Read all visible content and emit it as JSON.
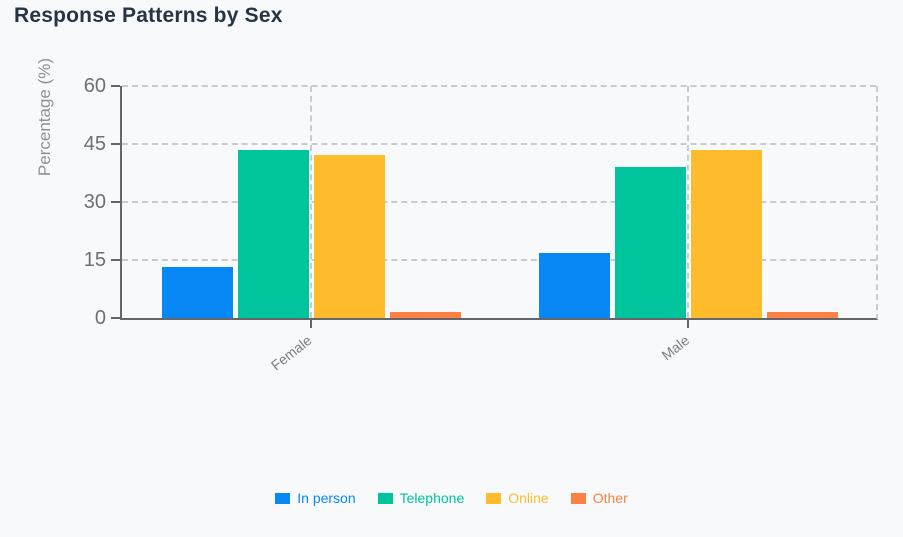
{
  "page": {
    "background": "#f8f9fb"
  },
  "chart_data": {
    "type": "bar",
    "title": "Response Patterns by Sex",
    "ylabel": "Percentage (%)",
    "xlabel": "",
    "categories": [
      "Female",
      "Male"
    ],
    "series": [
      {
        "name": "In person",
        "color": "#0788f5",
        "values": [
          13.2,
          16.9
        ]
      },
      {
        "name": "Telephone",
        "color": "#00c49c",
        "values": [
          43.5,
          39.0
        ]
      },
      {
        "name": "Online",
        "color": "#febc2d",
        "values": [
          42.2,
          43.4
        ]
      },
      {
        "name": "Other",
        "color": "#fd8044",
        "values": [
          1.6,
          1.5
        ]
      }
    ],
    "yticks": [
      0,
      15,
      30,
      45,
      60
    ],
    "ylim": [
      0,
      60
    ],
    "grid": true,
    "legend_position": "bottom",
    "colors": {
      "title": "#273444",
      "axis": "#64666a",
      "grid": "#c9cbcf",
      "tick_labels": "#6d6f73",
      "category_labels": "#7c7e83",
      "axis_title": "#8d9096"
    }
  }
}
